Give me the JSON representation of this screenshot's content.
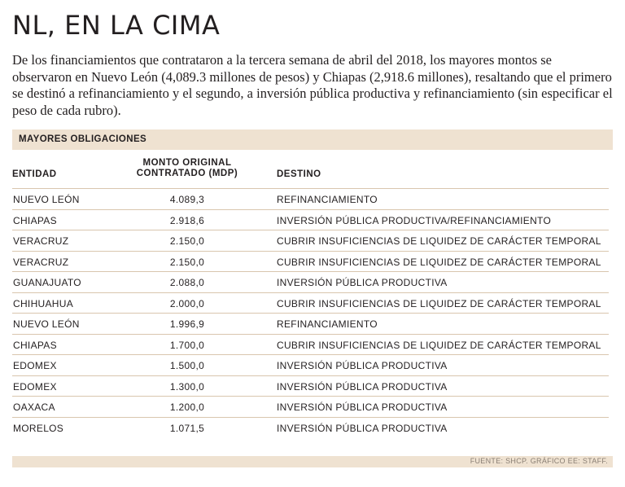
{
  "title": "NL, EN LA CIMA",
  "lead": "De los financiamientos que contrataron a la tercera semana de abril del 2018, los mayores montos se observaron en Nuevo León (4,089.3 millones de pesos) y Chiapas (2,918.6 millones), resaltando que el primero se destinó a refinanciamiento y el segundo, a inversión pública productiva y refinanciamiento (sin especificar el peso de cada rubro).",
  "table": {
    "section_label": "MAYORES OBLIGACIONES",
    "headers": {
      "entidad": "ENTIDAD",
      "monto_line1": "MONTO ORIGINAL",
      "monto_line2": "CONTRATADO (MDP)",
      "destino": "DESTINO"
    },
    "rows": [
      {
        "entidad": "NUEVO LEÓN",
        "monto": "4.089,3",
        "destino": "REFINANCIAMIENTO"
      },
      {
        "entidad": "CHIAPAS",
        "monto": "2.918,6",
        "destino": "INVERSIÓN PÚBLICA PRODUCTIVA/REFINANCIAMIENTO"
      },
      {
        "entidad": "VERACRUZ",
        "monto": "2.150,0",
        "destino": "CUBRIR INSUFICIENCIAS DE LIQUIDEZ DE CARÁCTER TEMPORAL"
      },
      {
        "entidad": "VERACRUZ",
        "monto": "2.150,0",
        "destino": "CUBRIR INSUFICIENCIAS DE LIQUIDEZ DE CARÁCTER TEMPORAL"
      },
      {
        "entidad": "GUANAJUATO",
        "monto": "2.088,0",
        "destino": "INVERSIÓN PÚBLICA PRODUCTIVA"
      },
      {
        "entidad": "CHIHUAHUA",
        "monto": "2.000,0",
        "destino": "CUBRIR INSUFICIENCIAS DE LIQUIDEZ DE CARÁCTER TEMPORAL"
      },
      {
        "entidad": "NUEVO LEÓN",
        "monto": "1.996,9",
        "destino": "REFINANCIAMIENTO"
      },
      {
        "entidad": "CHIAPAS",
        "monto": "1.700,0",
        "destino": "CUBRIR INSUFICIENCIAS DE LIQUIDEZ DE CARÁCTER TEMPORAL"
      },
      {
        "entidad": "EDOMEX",
        "monto": "1.500,0",
        "destino": "INVERSIÓN PÚBLICA PRODUCTIVA"
      },
      {
        "entidad": "EDOMEX",
        "monto": "1.300,0",
        "destino": "INVERSIÓN PÚBLICA PRODUCTIVA"
      },
      {
        "entidad": "OAXACA",
        "monto": "1.200,0",
        "destino": "INVERSIÓN PÚBLICA PRODUCTIVA"
      },
      {
        "entidad": "MORELOS",
        "monto": "1.071,5",
        "destino": "INVERSIÓN PÚBLICA PRODUCTIVA"
      }
    ]
  },
  "footer": "FUENTE: SHCP.   GRÁFICO EE: STAFF."
}
